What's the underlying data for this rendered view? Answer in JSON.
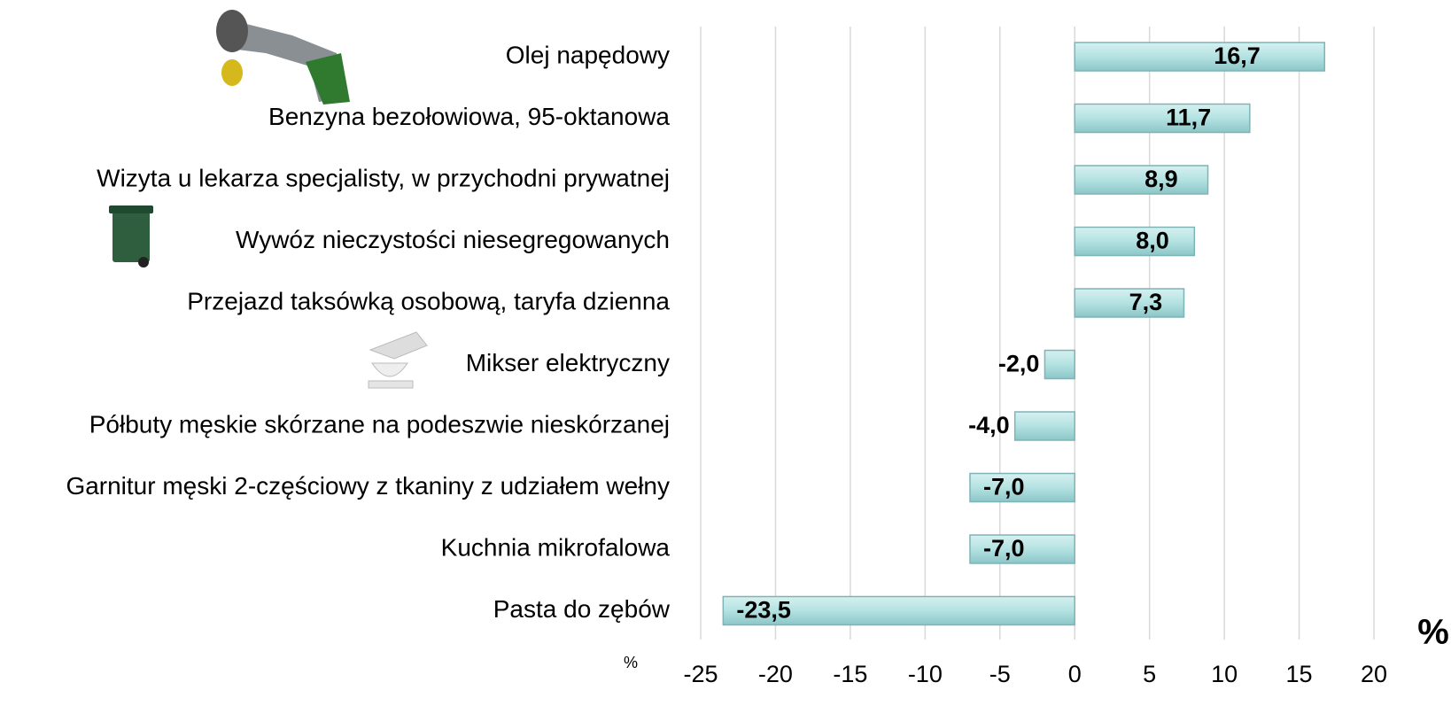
{
  "chart_data": {
    "type": "bar",
    "orientation": "horizontal",
    "categories": [
      "Olej napędowy",
      "Benzyna bezołowiowa, 95-oktanowa",
      "Wizyta u lekarza specjalisty, w przychodni prywatnej",
      "Wywóz nieczystości niesegregowanych",
      "Przejazd taksówką osobową, taryfa dzienna",
      "Mikser elektryczny",
      "Półbuty męskie skórzane na podeszwie nieskórzanej",
      "Garnitur męski 2-częściowy z tkaniny z udziałem wełny",
      "Kuchnia mikrofalowa",
      "Pasta do zębów"
    ],
    "values": [
      16.7,
      11.7,
      8.9,
      8.0,
      7.3,
      -2.0,
      -4.0,
      -7.0,
      -7.0,
      -23.5
    ],
    "value_labels": [
      "16,7",
      "11,7",
      "8,9",
      "8,0",
      "7,3",
      "-2,0",
      "-4,0",
      "-7,0",
      "-7,0",
      "-23,5"
    ],
    "color": "#b4e2e2",
    "xlim": [
      -25,
      20
    ],
    "xticks": [
      -25,
      -20,
      -15,
      -10,
      -5,
      0,
      5,
      10,
      15,
      20
    ],
    "grid": true,
    "annotations": [
      "%",
      "%"
    ]
  }
}
